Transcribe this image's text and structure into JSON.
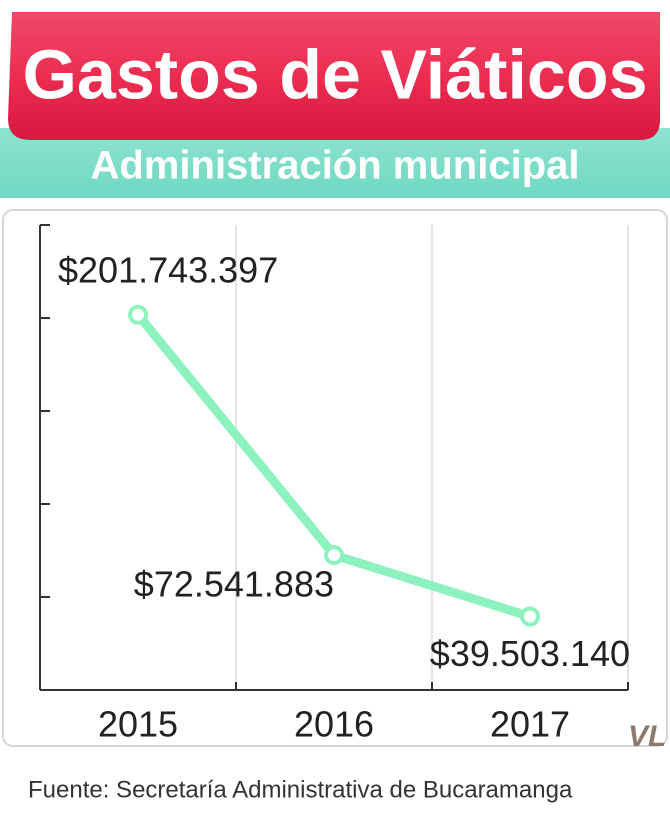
{
  "chart_data": {
    "type": "line",
    "title": "Gastos de Viáticos",
    "subtitle": "Administración municipal",
    "categories": [
      "2015",
      "2016",
      "2017"
    ],
    "series": [
      {
        "color": "#8ef2bf",
        "values": [
          201743397,
          72541883,
          39503140
        ],
        "value_labels": [
          "$201.743.397",
          "$72.541.883",
          "$39.503.140"
        ]
      }
    ],
    "ylim": [
      0,
      250000000
    ],
    "yticks": [
      0,
      50000000,
      100000000,
      150000000,
      200000000,
      250000000
    ],
    "grid": true,
    "source": "Fuente: Secretaría Administrativa de Bucaramanga",
    "logo": "VL"
  }
}
